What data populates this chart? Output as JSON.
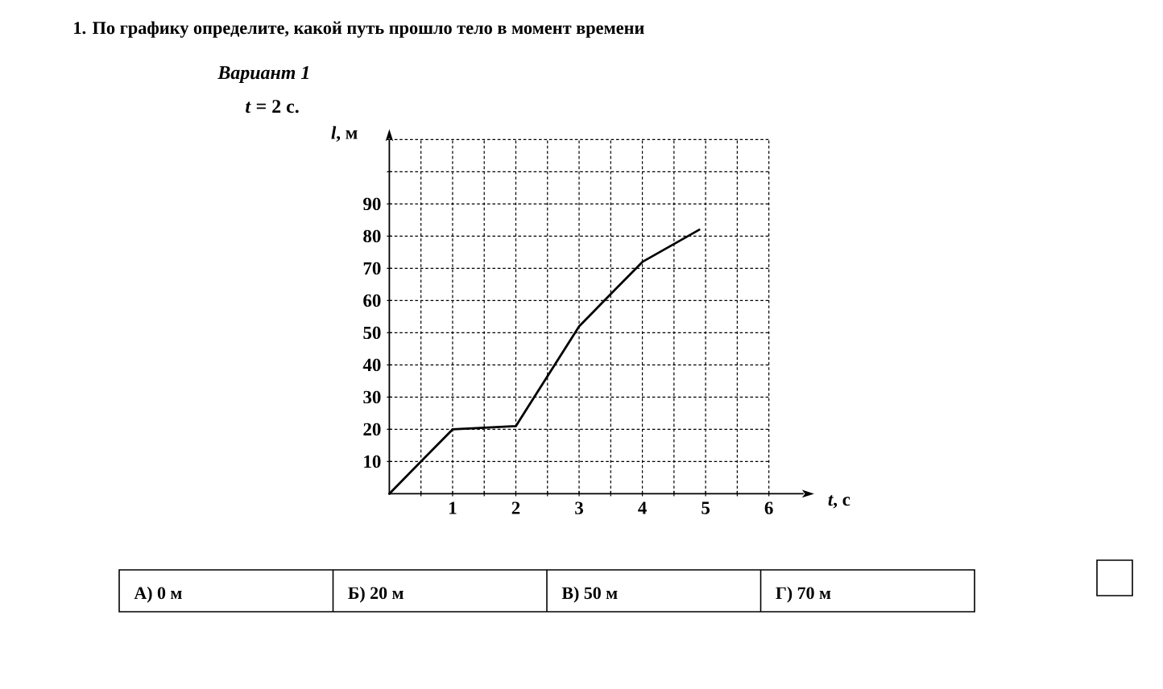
{
  "chart_data": {
    "type": "line",
    "title": "1. По графику определите, какой путь прошло тело в момент времени",
    "subtitle": "Вариант 1",
    "annotations": [
      "*t* = 2 с.",
      "А) 0 м",
      "Б) 20 м",
      "В) 50 м",
      "Г) 70 м"
    ],
    "xlabel": "*t*, с",
    "ylabel": "*l*, м",
    "x": [
      0,
      1,
      2,
      3,
      4,
      4.9
    ],
    "values": [
      0,
      20,
      21,
      52,
      72,
      82
    ],
    "color": "#000000",
    "xlim": [
      0,
      6.55
    ],
    "ylim": [
      0,
      110
    ],
    "xticks": [
      {
        "value": 0.5,
        "label": null
      },
      1,
      {
        "value": 1.5,
        "label": null
      },
      2,
      {
        "value": 2.5,
        "label": null
      },
      3,
      {
        "value": 3.5,
        "label": null
      },
      4,
      {
        "value": 4.5,
        "label": null
      },
      5,
      {
        "value": 5.5,
        "label": null
      },
      6
    ],
    "yticks": [
      10,
      20,
      30,
      40,
      50,
      60,
      70,
      80,
      90,
      {
        "value": 100,
        "label": null
      },
      {
        "value": 110,
        "label": null
      }
    ],
    "grid": true,
    "marker": "none",
    "line_style": "solid"
  }
}
